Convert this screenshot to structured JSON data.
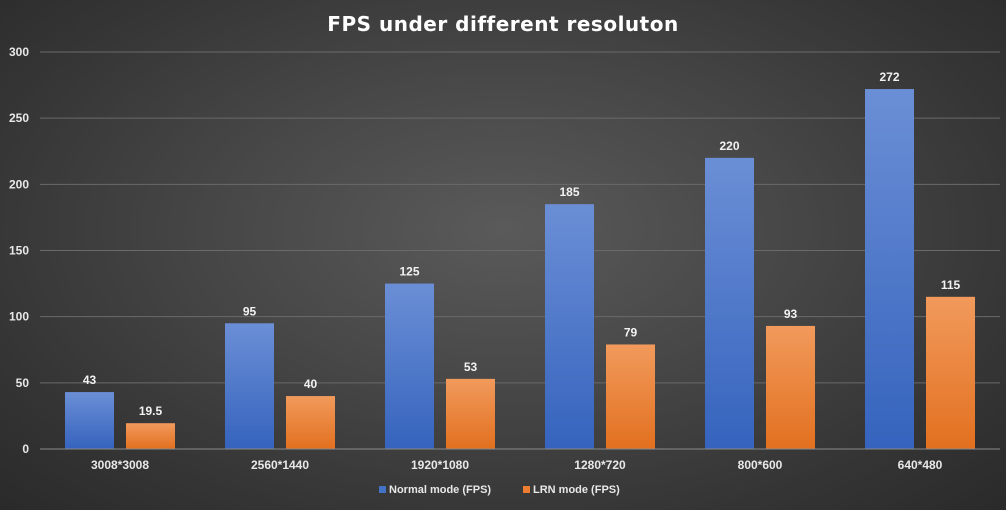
{
  "chart_data": {
    "type": "bar",
    "title": "FPS under different resoluton",
    "xlabel": "",
    "ylabel": "",
    "categories": [
      "3008*3008",
      "2560*1440",
      "1920*1080",
      "1280*720",
      "800*600",
      "640*480"
    ],
    "series": [
      {
        "name": "Normal mode (FPS)",
        "values": [
          43,
          95,
          125,
          185,
          220,
          272
        ],
        "color": "#4472C4"
      },
      {
        "name": "LRN mode (FPS)",
        "values": [
          19.5,
          40,
          53,
          79,
          93,
          115
        ],
        "color": "#ED7D31"
      }
    ],
    "ylim": [
      0,
      300
    ],
    "yticks": [
      0,
      50,
      100,
      150,
      200,
      250,
      300
    ],
    "grid": true,
    "legend_position": "bottom",
    "data_labels": true
  }
}
